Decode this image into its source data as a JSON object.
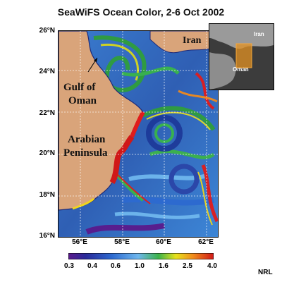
{
  "title": "SeaWiFS Ocean Color, 2-6 Oct 2002",
  "credit": "NRL",
  "map": {
    "latitudes": [
      "26°N",
      "24°N",
      "22°N",
      "20°N",
      "18°N",
      "16°N"
    ],
    "longitudes": [
      "56°E",
      "58°E",
      "60°E",
      "62°E"
    ],
    "places": {
      "iran": "Iran",
      "gulf_line1": "Gulf of",
      "gulf_line2": "Oman",
      "arabia_line1": "Arabian",
      "arabia_line2": "Peninsula"
    },
    "colors": {
      "land": "#d9a47a",
      "coast": "#1e2a78"
    }
  },
  "inset": {
    "iran": "Iran",
    "oman": "Oman",
    "highlight_color": "#e29022"
  },
  "colorbar": {
    "tick_labels": [
      "0.3",
      "0.4",
      "0.6",
      "1.0",
      "1.6",
      "2.5",
      "4.0"
    ],
    "colors": [
      "#5a1a8c",
      "#2a2a9a",
      "#2d6ad0",
      "#6fb7ee",
      "#3cb34a",
      "#e7e21c",
      "#f08a1c",
      "#d01818"
    ]
  }
}
